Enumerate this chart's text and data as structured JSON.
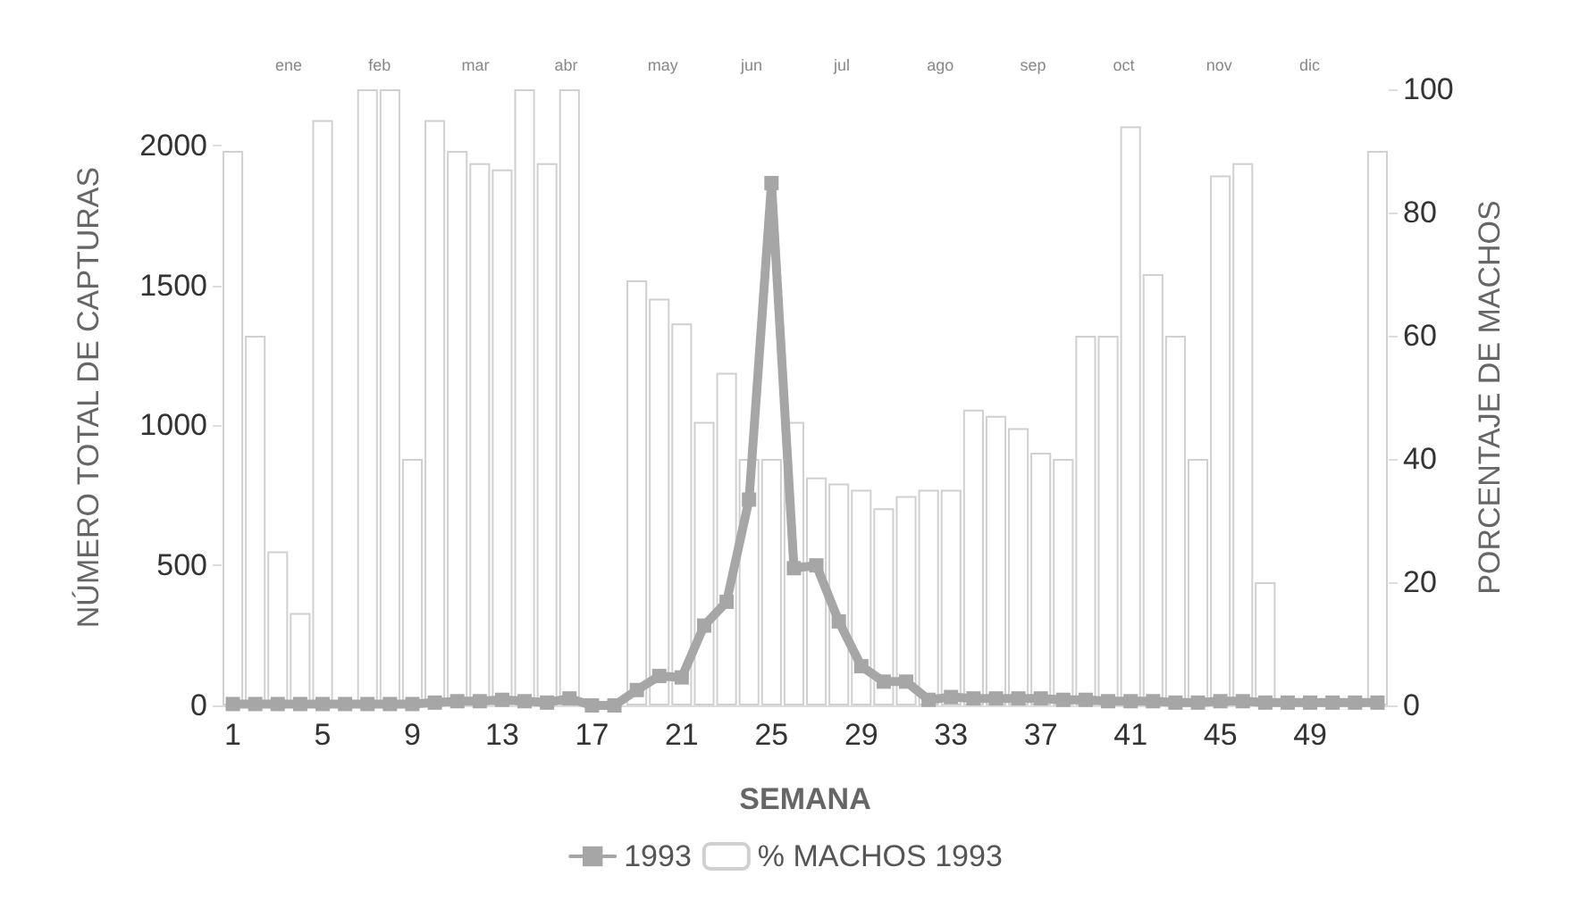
{
  "chart_data": {
    "type": "line",
    "xlabel": "SEMANA",
    "ylabel": "NÚMERO TOTAL DE CAPTURAS",
    "y2label": "PORCENTAJE DE MACHOS",
    "categories": [
      "1",
      null,
      null,
      null,
      "5",
      null,
      null,
      null,
      "9",
      null,
      null,
      null,
      "13",
      null,
      null,
      null,
      "17",
      null,
      null,
      null,
      "21",
      null,
      null,
      null,
      "25",
      null,
      null,
      null,
      "29",
      null,
      null,
      null,
      "33",
      null,
      null,
      null,
      "37",
      null,
      null,
      null,
      "41",
      null,
      null,
      null,
      "45",
      null,
      null,
      null,
      "49",
      null,
      null,
      null
    ],
    "series": [
      {
        "name": "% MACHOS 1993",
        "type": "bar",
        "axis": "y2",
        "color": "#ffffff",
        "values": [
          90,
          60,
          25,
          15,
          95,
          0,
          100,
          100,
          40,
          95,
          90,
          88,
          87,
          100,
          88,
          100,
          0,
          0,
          69,
          66,
          62,
          46,
          54,
          40,
          40,
          46,
          37,
          36,
          35,
          32,
          34,
          35,
          35,
          48,
          47,
          45,
          41,
          40,
          60,
          60,
          94,
          70,
          60,
          40,
          86,
          88,
          20,
          0,
          0,
          0,
          0,
          90
        ]
      },
      {
        "name": "1993",
        "color": "#a6a6a6",
        "values": [
          5,
          5,
          5,
          5,
          5,
          5,
          5,
          5,
          5,
          10,
          15,
          15,
          20,
          15,
          10,
          25,
          0,
          0,
          55,
          105,
          100,
          285,
          370,
          735,
          1865,
          490,
          500,
          300,
          140,
          85,
          85,
          20,
          30,
          25,
          25,
          25,
          25,
          20,
          20,
          15,
          15,
          15,
          10,
          10,
          15,
          15,
          10,
          10,
          10,
          10,
          10,
          10
        ]
      }
    ],
    "ylim": [
      0,
      2200
    ],
    "yticks": [
      0,
      500,
      1000,
      1500,
      2000
    ],
    "y2lim": [
      0,
      100
    ],
    "y2ticks": [
      0,
      20,
      40,
      60,
      80,
      100
    ],
    "annotations": [
      "ene",
      "feb",
      "mar",
      "abr",
      "may",
      "jun",
      "jul",
      "ago",
      "sep",
      "oct",
      "nov",
      "dic"
    ],
    "marker": "square",
    "legend": "bottom",
    "grid": false
  }
}
